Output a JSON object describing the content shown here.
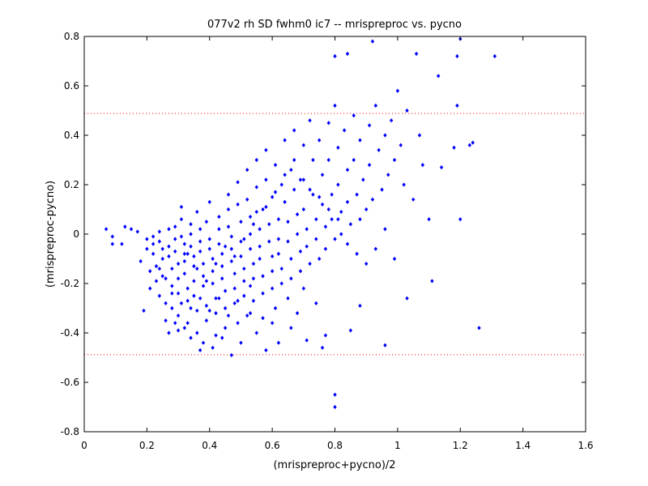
{
  "chart_data": {
    "type": "scatter",
    "title": "077v2 rh SD fwhm0 ic7 -- mrispreproc vs. pycno",
    "xlabel": "(mrispreproc+pycno)/2",
    "ylabel": "(mrispreproc-pycno)",
    "xlim": [
      0,
      1.6
    ],
    "ylim": [
      -0.8,
      0.8
    ],
    "xticks": [
      0,
      0.2,
      0.4,
      0.6,
      0.8,
      1,
      1.2,
      1.4,
      1.6
    ],
    "xtick_labels": [
      "0",
      "0.2",
      "0.4",
      "0.6",
      "0.8",
      "1",
      "1.2",
      "1.4",
      "1.6"
    ],
    "yticks": [
      -0.8,
      -0.6,
      -0.4,
      -0.2,
      0,
      0.2,
      0.4,
      0.6,
      0.8
    ],
    "ytick_labels": [
      "-0.8",
      "-0.6",
      "-0.4",
      "-0.2",
      "0",
      "0.2",
      "0.4",
      "0.6",
      "0.8"
    ],
    "grid": false,
    "marker_color": "#0000ff",
    "reference_line_color": "#ff0000",
    "reference_lines_y": [
      0.488,
      -0.488
    ],
    "points": [
      [
        0.07,
        0.02
      ],
      [
        0.09,
        -0.01
      ],
      [
        0.09,
        -0.04
      ],
      [
        0.12,
        -0.04
      ],
      [
        0.13,
        0.03
      ],
      [
        0.15,
        0.02
      ],
      [
        0.17,
        0.01
      ],
      [
        0.18,
        -0.11
      ],
      [
        0.19,
        -0.31
      ],
      [
        0.2,
        -0.02
      ],
      [
        0.2,
        -0.06
      ],
      [
        0.21,
        -0.15
      ],
      [
        0.21,
        -0.22
      ],
      [
        0.22,
        -0.01
      ],
      [
        0.22,
        -0.04
      ],
      [
        0.22,
        -0.08
      ],
      [
        0.23,
        -0.13
      ],
      [
        0.23,
        -0.19
      ],
      [
        0.24,
        -0.25
      ],
      [
        0.24,
        0.01
      ],
      [
        0.24,
        -0.03
      ],
      [
        0.25,
        -0.06
      ],
      [
        0.25,
        -0.1
      ],
      [
        0.25,
        -0.17
      ],
      [
        0.26,
        -0.28
      ],
      [
        0.26,
        -0.35
      ],
      [
        0.27,
        0.02
      ],
      [
        0.27,
        -0.05
      ],
      [
        0.27,
        -0.09
      ],
      [
        0.28,
        -0.14
      ],
      [
        0.28,
        -0.21
      ],
      [
        0.28,
        -0.3
      ],
      [
        0.29,
        0.03
      ],
      [
        0.29,
        -0.02
      ],
      [
        0.29,
        -0.07
      ],
      [
        0.3,
        -0.12
      ],
      [
        0.3,
        -0.18
      ],
      [
        0.3,
        -0.24
      ],
      [
        0.3,
        -0.33
      ],
      [
        0.3,
        -0.39
      ],
      [
        0.31,
        0.11
      ],
      [
        0.31,
        0.06
      ],
      [
        0.31,
        -0.01
      ],
      [
        0.32,
        -0.04
      ],
      [
        0.32,
        -0.08
      ],
      [
        0.32,
        -0.11
      ],
      [
        0.32,
        -0.16
      ],
      [
        0.33,
        -0.22
      ],
      [
        0.33,
        -0.27
      ],
      [
        0.33,
        -0.36
      ],
      [
        0.34,
        0.04
      ],
      [
        0.34,
        0.0
      ],
      [
        0.34,
        -0.05
      ],
      [
        0.35,
        -0.09
      ],
      [
        0.35,
        -0.13
      ],
      [
        0.35,
        -0.19
      ],
      [
        0.35,
        -0.25
      ],
      [
        0.36,
        -0.31
      ],
      [
        0.36,
        -0.4
      ],
      [
        0.36,
        0.09
      ],
      [
        0.37,
        0.02
      ],
      [
        0.37,
        -0.03
      ],
      [
        0.37,
        -0.07
      ],
      [
        0.38,
        -0.12
      ],
      [
        0.38,
        -0.17
      ],
      [
        0.38,
        -0.21
      ],
      [
        0.39,
        -0.29
      ],
      [
        0.39,
        -0.35
      ],
      [
        0.39,
        0.05
      ],
      [
        0.4,
        0.13
      ],
      [
        0.4,
        -0.02
      ],
      [
        0.4,
        -0.06
      ],
      [
        0.41,
        -0.1
      ],
      [
        0.41,
        -0.15
      ],
      [
        0.41,
        -0.2
      ],
      [
        0.42,
        -0.26
      ],
      [
        0.42,
        -0.32
      ],
      [
        0.42,
        -0.41
      ],
      [
        0.43,
        0.07
      ],
      [
        0.43,
        0.02
      ],
      [
        0.43,
        -0.04
      ],
      [
        0.44,
        -0.08
      ],
      [
        0.44,
        -0.13
      ],
      [
        0.44,
        -0.18
      ],
      [
        0.45,
        -0.23
      ],
      [
        0.45,
        -0.3
      ],
      [
        0.45,
        -0.38
      ],
      [
        0.46,
        0.16
      ],
      [
        0.46,
        0.1
      ],
      [
        0.46,
        0.03
      ],
      [
        0.47,
        -0.01
      ],
      [
        0.47,
        -0.06
      ],
      [
        0.47,
        -0.11
      ],
      [
        0.48,
        -0.16
      ],
      [
        0.48,
        -0.22
      ],
      [
        0.48,
        -0.28
      ],
      [
        0.49,
        -0.36
      ],
      [
        0.49,
        0.21
      ],
      [
        0.49,
        0.12
      ],
      [
        0.5,
        0.05
      ],
      [
        0.5,
        -0.03
      ],
      [
        0.5,
        -0.09
      ],
      [
        0.51,
        -0.14
      ],
      [
        0.51,
        -0.19
      ],
      [
        0.51,
        -0.25
      ],
      [
        0.52,
        -0.33
      ],
      [
        0.52,
        0.26
      ],
      [
        0.52,
        0.14
      ],
      [
        0.53,
        0.07
      ],
      [
        0.53,
        0.0
      ],
      [
        0.53,
        -0.06
      ],
      [
        0.54,
        -0.12
      ],
      [
        0.54,
        -0.18
      ],
      [
        0.54,
        -0.27
      ],
      [
        0.55,
        0.3
      ],
      [
        0.55,
        0.19
      ],
      [
        0.55,
        0.09
      ],
      [
        0.56,
        0.02
      ],
      [
        0.56,
        -0.05
      ],
      [
        0.56,
        -0.1
      ],
      [
        0.57,
        -0.17
      ],
      [
        0.57,
        -0.24
      ],
      [
        0.58,
        0.34
      ],
      [
        0.58,
        0.22
      ],
      [
        0.58,
        0.11
      ],
      [
        0.59,
        0.04
      ],
      [
        0.59,
        -0.03
      ],
      [
        0.6,
        -0.09
      ],
      [
        0.6,
        -0.15
      ],
      [
        0.6,
        -0.22
      ],
      [
        0.61,
        0.28
      ],
      [
        0.61,
        0.17
      ],
      [
        0.62,
        0.06
      ],
      [
        0.62,
        -0.02
      ],
      [
        0.62,
        -0.08
      ],
      [
        0.63,
        -0.14
      ],
      [
        0.63,
        -0.2
      ],
      [
        0.64,
        0.38
      ],
      [
        0.64,
        0.24
      ],
      [
        0.64,
        0.13
      ],
      [
        0.65,
        0.05
      ],
      [
        0.65,
        -0.03
      ],
      [
        0.66,
        -0.1
      ],
      [
        0.66,
        -0.18
      ],
      [
        0.67,
        0.42
      ],
      [
        0.67,
        0.3
      ],
      [
        0.67,
        0.18
      ],
      [
        0.68,
        0.08
      ],
      [
        0.68,
        0.0
      ],
      [
        0.69,
        -0.07
      ],
      [
        0.69,
        -0.15
      ],
      [
        0.7,
        0.36
      ],
      [
        0.7,
        0.22
      ],
      [
        0.7,
        0.1
      ],
      [
        0.71,
        0.02
      ],
      [
        0.71,
        -0.05
      ],
      [
        0.72,
        -0.12
      ],
      [
        0.72,
        0.46
      ],
      [
        0.73,
        0.3
      ],
      [
        0.73,
        0.16
      ],
      [
        0.74,
        0.06
      ],
      [
        0.74,
        -0.02
      ],
      [
        0.75,
        -0.1
      ],
      [
        0.75,
        0.38
      ],
      [
        0.76,
        0.24
      ],
      [
        0.76,
        0.12
      ],
      [
        0.77,
        0.03
      ],
      [
        0.77,
        -0.06
      ],
      [
        0.78,
        0.45
      ],
      [
        0.78,
        0.3
      ],
      [
        0.79,
        0.16
      ],
      [
        0.79,
        0.06
      ],
      [
        0.8,
        -0.02
      ],
      [
        0.8,
        0.52
      ],
      [
        0.81,
        0.35
      ],
      [
        0.81,
        0.2
      ],
      [
        0.82,
        0.09
      ],
      [
        0.82,
        0.0
      ],
      [
        0.83,
        0.42
      ],
      [
        0.84,
        0.26
      ],
      [
        0.84,
        0.13
      ],
      [
        0.85,
        0.04
      ],
      [
        0.86,
        0.48
      ],
      [
        0.86,
        0.3
      ],
      [
        0.87,
        0.16
      ],
      [
        0.88,
        0.06
      ],
      [
        0.88,
        0.38
      ],
      [
        0.89,
        0.22
      ],
      [
        0.9,
        0.1
      ],
      [
        0.91,
        0.44
      ],
      [
        0.91,
        0.28
      ],
      [
        0.92,
        0.14
      ],
      [
        0.93,
        0.52
      ],
      [
        0.94,
        0.34
      ],
      [
        0.95,
        0.18
      ],
      [
        0.96,
        0.4
      ],
      [
        0.97,
        0.24
      ],
      [
        0.98,
        0.46
      ],
      [
        0.99,
        0.3
      ],
      [
        1.0,
        0.58
      ],
      [
        1.01,
        0.36
      ],
      [
        1.02,
        0.2
      ],
      [
        1.03,
        0.5
      ],
      [
        1.05,
        0.14
      ],
      [
        1.06,
        0.73
      ],
      [
        1.07,
        0.4
      ],
      [
        1.08,
        0.28
      ],
      [
        1.1,
        0.06
      ],
      [
        1.13,
        0.64
      ],
      [
        1.14,
        0.27
      ],
      [
        1.18,
        0.35
      ],
      [
        1.19,
        0.52
      ],
      [
        1.19,
        0.72
      ],
      [
        1.2,
        0.06
      ],
      [
        1.23,
        0.36
      ],
      [
        1.24,
        0.37
      ],
      [
        1.31,
        0.72
      ],
      [
        1.2,
        0.79
      ],
      [
        0.92,
        0.78
      ],
      [
        0.8,
        0.72
      ],
      [
        0.84,
        0.73
      ],
      [
        1.11,
        -0.19
      ],
      [
        1.26,
        -0.38
      ],
      [
        1.03,
        -0.26
      ],
      [
        0.96,
        -0.45
      ],
      [
        0.85,
        -0.39
      ],
      [
        0.88,
        -0.29
      ],
      [
        0.8,
        -0.65
      ],
      [
        0.8,
        -0.7
      ],
      [
        0.76,
        -0.46
      ],
      [
        0.77,
        -0.41
      ],
      [
        0.71,
        -0.43
      ],
      [
        0.68,
        -0.32
      ],
      [
        0.66,
        -0.38
      ],
      [
        0.62,
        -0.44
      ],
      [
        0.6,
        -0.36
      ],
      [
        0.58,
        -0.47
      ],
      [
        0.55,
        -0.4
      ],
      [
        0.53,
        -0.32
      ],
      [
        0.5,
        -0.44
      ],
      [
        0.47,
        -0.49
      ],
      [
        0.44,
        -0.42
      ],
      [
        0.41,
        -0.46
      ],
      [
        0.38,
        -0.44
      ],
      [
        0.37,
        -0.47
      ],
      [
        0.34,
        -0.42
      ],
      [
        0.32,
        -0.38
      ],
      [
        0.29,
        -0.36
      ],
      [
        0.27,
        -0.4
      ],
      [
        0.33,
        -0.08
      ],
      [
        0.36,
        -0.14
      ],
      [
        0.39,
        -0.19
      ],
      [
        0.42,
        -0.12
      ],
      [
        0.45,
        -0.05
      ],
      [
        0.48,
        -0.09
      ],
      [
        0.51,
        -0.02
      ],
      [
        0.54,
        0.04
      ],
      [
        0.57,
        0.1
      ],
      [
        0.6,
        0.15
      ],
      [
        0.63,
        0.2
      ],
      [
        0.66,
        0.26
      ],
      [
        0.69,
        0.22
      ],
      [
        0.72,
        0.18
      ],
      [
        0.75,
        0.15
      ],
      [
        0.78,
        0.1
      ],
      [
        0.81,
        0.06
      ],
      [
        0.84,
        -0.04
      ],
      [
        0.87,
        -0.08
      ],
      [
        0.9,
        -0.12
      ],
      [
        0.93,
        -0.06
      ],
      [
        0.96,
        0.02
      ],
      [
        0.99,
        -0.1
      ],
      [
        0.74,
        -0.28
      ],
      [
        0.7,
        -0.22
      ],
      [
        0.65,
        -0.26
      ],
      [
        0.61,
        -0.3
      ],
      [
        0.57,
        -0.34
      ],
      [
        0.53,
        -0.21
      ],
      [
        0.49,
        -0.27
      ],
      [
        0.46,
        -0.33
      ],
      [
        0.43,
        -0.26
      ],
      [
        0.4,
        -0.31
      ],
      [
        0.37,
        -0.26
      ],
      [
        0.34,
        -0.3
      ],
      [
        0.31,
        -0.28
      ],
      [
        0.28,
        -0.24
      ],
      [
        0.26,
        -0.18
      ],
      [
        0.24,
        -0.14
      ]
    ]
  }
}
